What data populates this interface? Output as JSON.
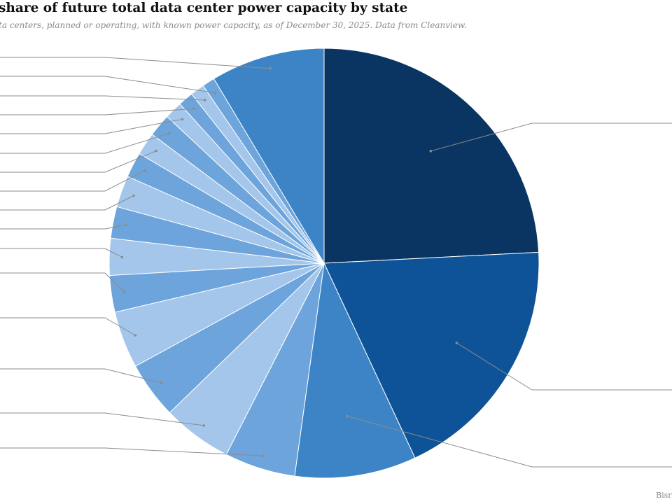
{
  "title": "share of future total data center power capacity by state",
  "subtitle": "ta centers, planned or operating, with known power capacity, as of December 30, 2025. Data from Cleanview.",
  "source": "Bisr",
  "chart_data": {
    "type": "pie",
    "title": "share of future total data center power capacity by state",
    "subtitle": "ta centers, planned or operating, with known power capacity, as of December 30, 2025. Data from Cleanview.",
    "legend": "leader lines to labels outside the visible area",
    "slices": [
      {
        "value": 25.4,
        "color": "#0a3563"
      },
      {
        "value": 19.8,
        "color": "#0e5397"
      },
      {
        "value": 9.6,
        "color": "#3d84c6"
      },
      {
        "value": 5.6,
        "color": "#6ca4db"
      },
      {
        "value": 5.5,
        "color": "#a3c6ea"
      },
      {
        "value": 4.5,
        "color": "#6ca4db"
      },
      {
        "value": 4.5,
        "color": "#a3c6ea"
      },
      {
        "value": 2.9,
        "color": "#6ca4db"
      },
      {
        "value": 2.9,
        "color": "#a3c6ea"
      },
      {
        "value": 2.5,
        "color": "#6ca4db"
      },
      {
        "value": 2.5,
        "color": "#a3c6ea"
      },
      {
        "value": 2.0,
        "color": "#6ca4db"
      },
      {
        "value": 1.8,
        "color": "#a3c6ea"
      },
      {
        "value": 1.8,
        "color": "#6ca4db"
      },
      {
        "value": 1.4,
        "color": "#a3c6ea"
      },
      {
        "value": 1.2,
        "color": "#6ca4db"
      },
      {
        "value": 1.1,
        "color": "#a3c6ea"
      },
      {
        "value": 1.0,
        "color": "#6ca4db"
      },
      {
        "value": 9.0,
        "color": "#3d84c6"
      }
    ]
  }
}
